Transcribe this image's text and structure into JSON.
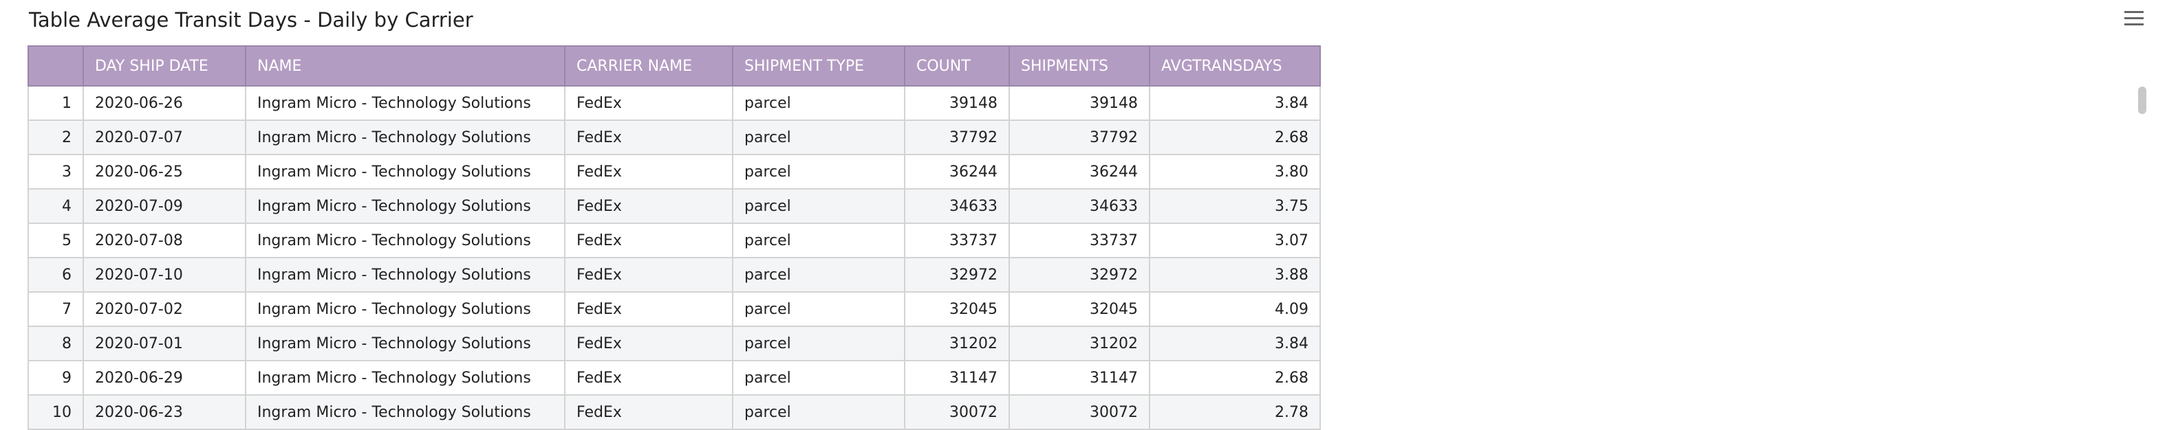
{
  "header": {
    "title": "Table Average Transit Days - Daily by Carrier"
  },
  "table": {
    "columns": [
      "DAY SHIP DATE",
      "NAME",
      "CARRIER NAME",
      "SHIPMENT TYPE",
      "COUNT",
      "SHIPMENTS",
      "AVGTRANSDAYS"
    ],
    "rows": [
      [
        "1",
        "2020-06-26",
        "Ingram Micro - Technology Solutions",
        "FedEx",
        "parcel",
        "39148",
        "39148",
        "3.84"
      ],
      [
        "2",
        "2020-07-07",
        "Ingram Micro - Technology Solutions",
        "FedEx",
        "parcel",
        "37792",
        "37792",
        "2.68"
      ],
      [
        "3",
        "2020-06-25",
        "Ingram Micro - Technology Solutions",
        "FedEx",
        "parcel",
        "36244",
        "36244",
        "3.80"
      ],
      [
        "4",
        "2020-07-09",
        "Ingram Micro - Technology Solutions",
        "FedEx",
        "parcel",
        "34633",
        "34633",
        "3.75"
      ],
      [
        "5",
        "2020-07-08",
        "Ingram Micro - Technology Solutions",
        "FedEx",
        "parcel",
        "33737",
        "33737",
        "3.07"
      ],
      [
        "6",
        "2020-07-10",
        "Ingram Micro - Technology Solutions",
        "FedEx",
        "parcel",
        "32972",
        "32972",
        "3.88"
      ],
      [
        "7",
        "2020-07-02",
        "Ingram Micro - Technology Solutions",
        "FedEx",
        "parcel",
        "32045",
        "32045",
        "4.09"
      ],
      [
        "8",
        "2020-07-01",
        "Ingram Micro - Technology Solutions",
        "FedEx",
        "parcel",
        "31202",
        "31202",
        "3.84"
      ],
      [
        "9",
        "2020-06-29",
        "Ingram Micro - Technology Solutions",
        "FedEx",
        "parcel",
        "31147",
        "31147",
        "2.68"
      ],
      [
        "10",
        "2020-06-23",
        "Ingram Micro - Technology Solutions",
        "FedEx",
        "parcel",
        "30072",
        "30072",
        "2.78"
      ]
    ]
  }
}
